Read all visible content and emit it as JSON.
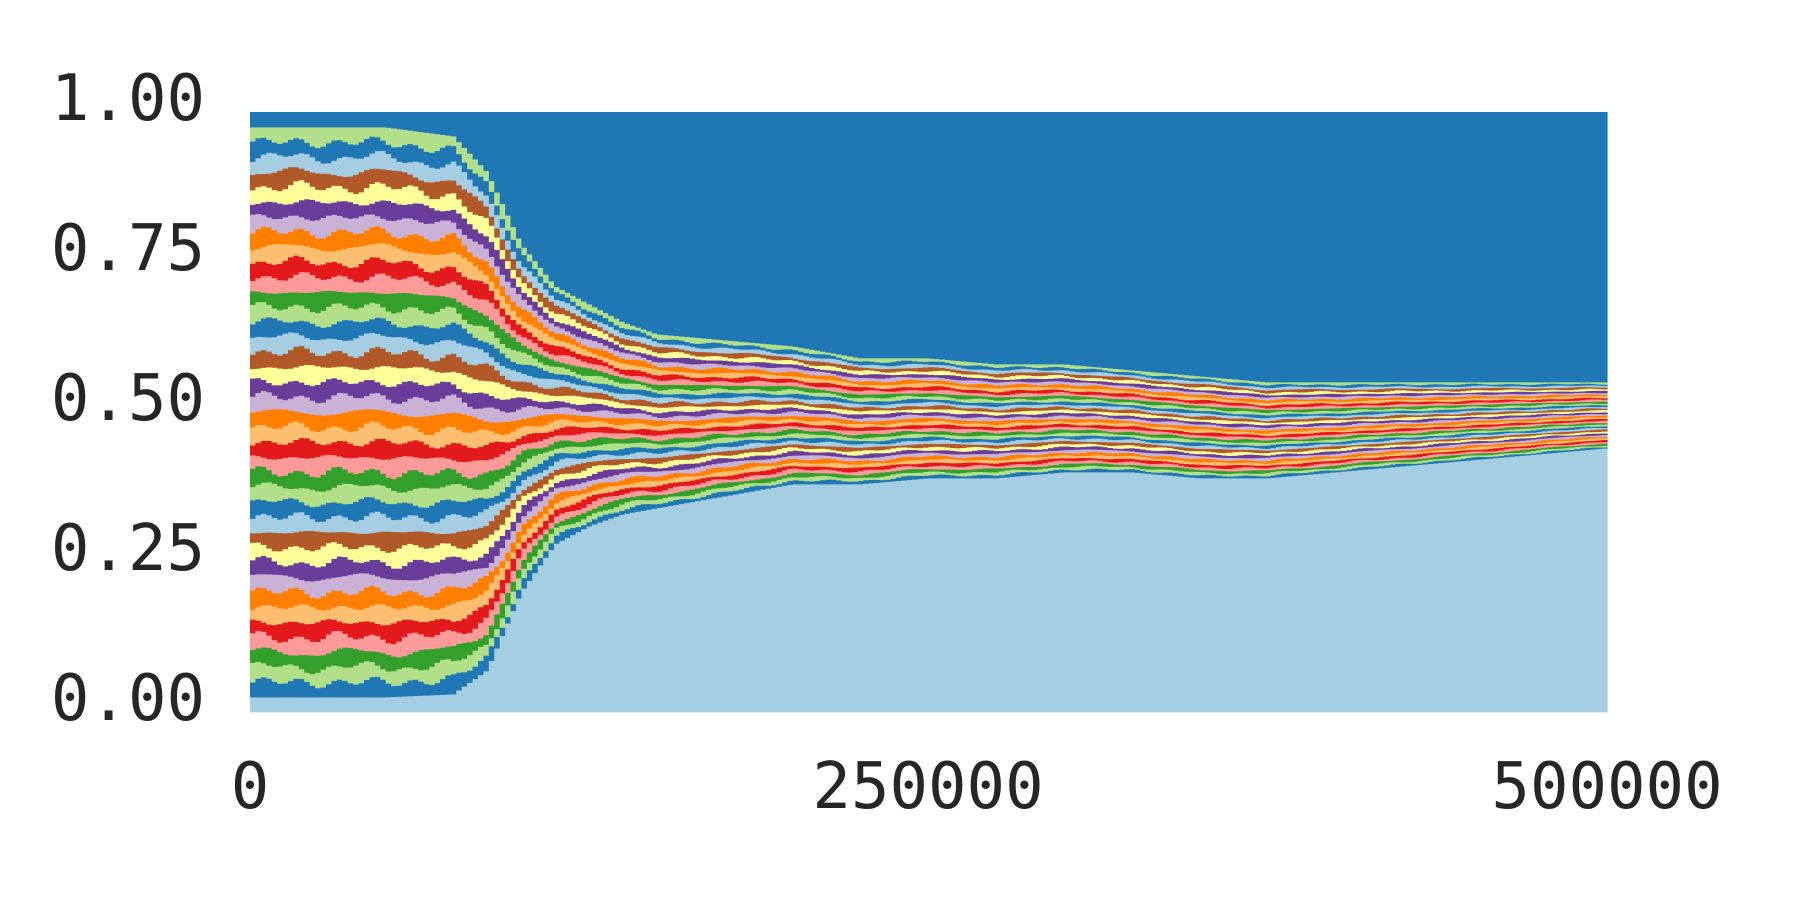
{
  "chart_data": {
    "type": "area",
    "stacked": true,
    "normalized": true,
    "title": "",
    "xlabel": "",
    "ylabel": "",
    "xlim": [
      0,
      500000
    ],
    "ylim": [
      0,
      1
    ],
    "grid": false,
    "legend": "none",
    "x_ticks": [
      0,
      250000,
      500000
    ],
    "x_tick_labels": [
      "0",
      "250000",
      "500000"
    ],
    "y_ticks": [
      0,
      0.25,
      0.5,
      0.75,
      1
    ],
    "y_tick_labels": [
      "0.00",
      "0.25",
      "0.50",
      "0.75",
      "1.00"
    ],
    "palette": [
      "#a6cee3",
      "#1f78b4",
      "#b2df8a",
      "#33a02c",
      "#fb9a99",
      "#e31a1c",
      "#fdbf6f",
      "#ff7f00",
      "#cab2d6",
      "#6a3d9a",
      "#ffff99",
      "#b15928"
    ],
    "series_count": 40,
    "bottom_series_color": "#a6cee3",
    "top_series_color": "#1f78b4",
    "x": [
      0,
      25000,
      50000,
      75000,
      87500,
      100000,
      112500,
      125000,
      137500,
      150000,
      175000,
      200000,
      225000,
      250000,
      275000,
      300000,
      325000,
      350000,
      375000,
      400000,
      425000,
      450000,
      475000,
      500000
    ],
    "bottom_share": [
      0.025,
      0.025,
      0.025,
      0.03,
      0.07,
      0.2,
      0.28,
      0.31,
      0.33,
      0.34,
      0.36,
      0.38,
      0.38,
      0.39,
      0.39,
      0.4,
      0.4,
      0.39,
      0.39,
      0.4,
      0.41,
      0.42,
      0.43,
      0.44
    ],
    "top_share": [
      0.025,
      0.025,
      0.025,
      0.04,
      0.1,
      0.22,
      0.29,
      0.32,
      0.35,
      0.37,
      0.38,
      0.39,
      0.41,
      0.41,
      0.42,
      0.42,
      0.43,
      0.44,
      0.45,
      0.45,
      0.45,
      0.45,
      0.45,
      0.45
    ]
  }
}
